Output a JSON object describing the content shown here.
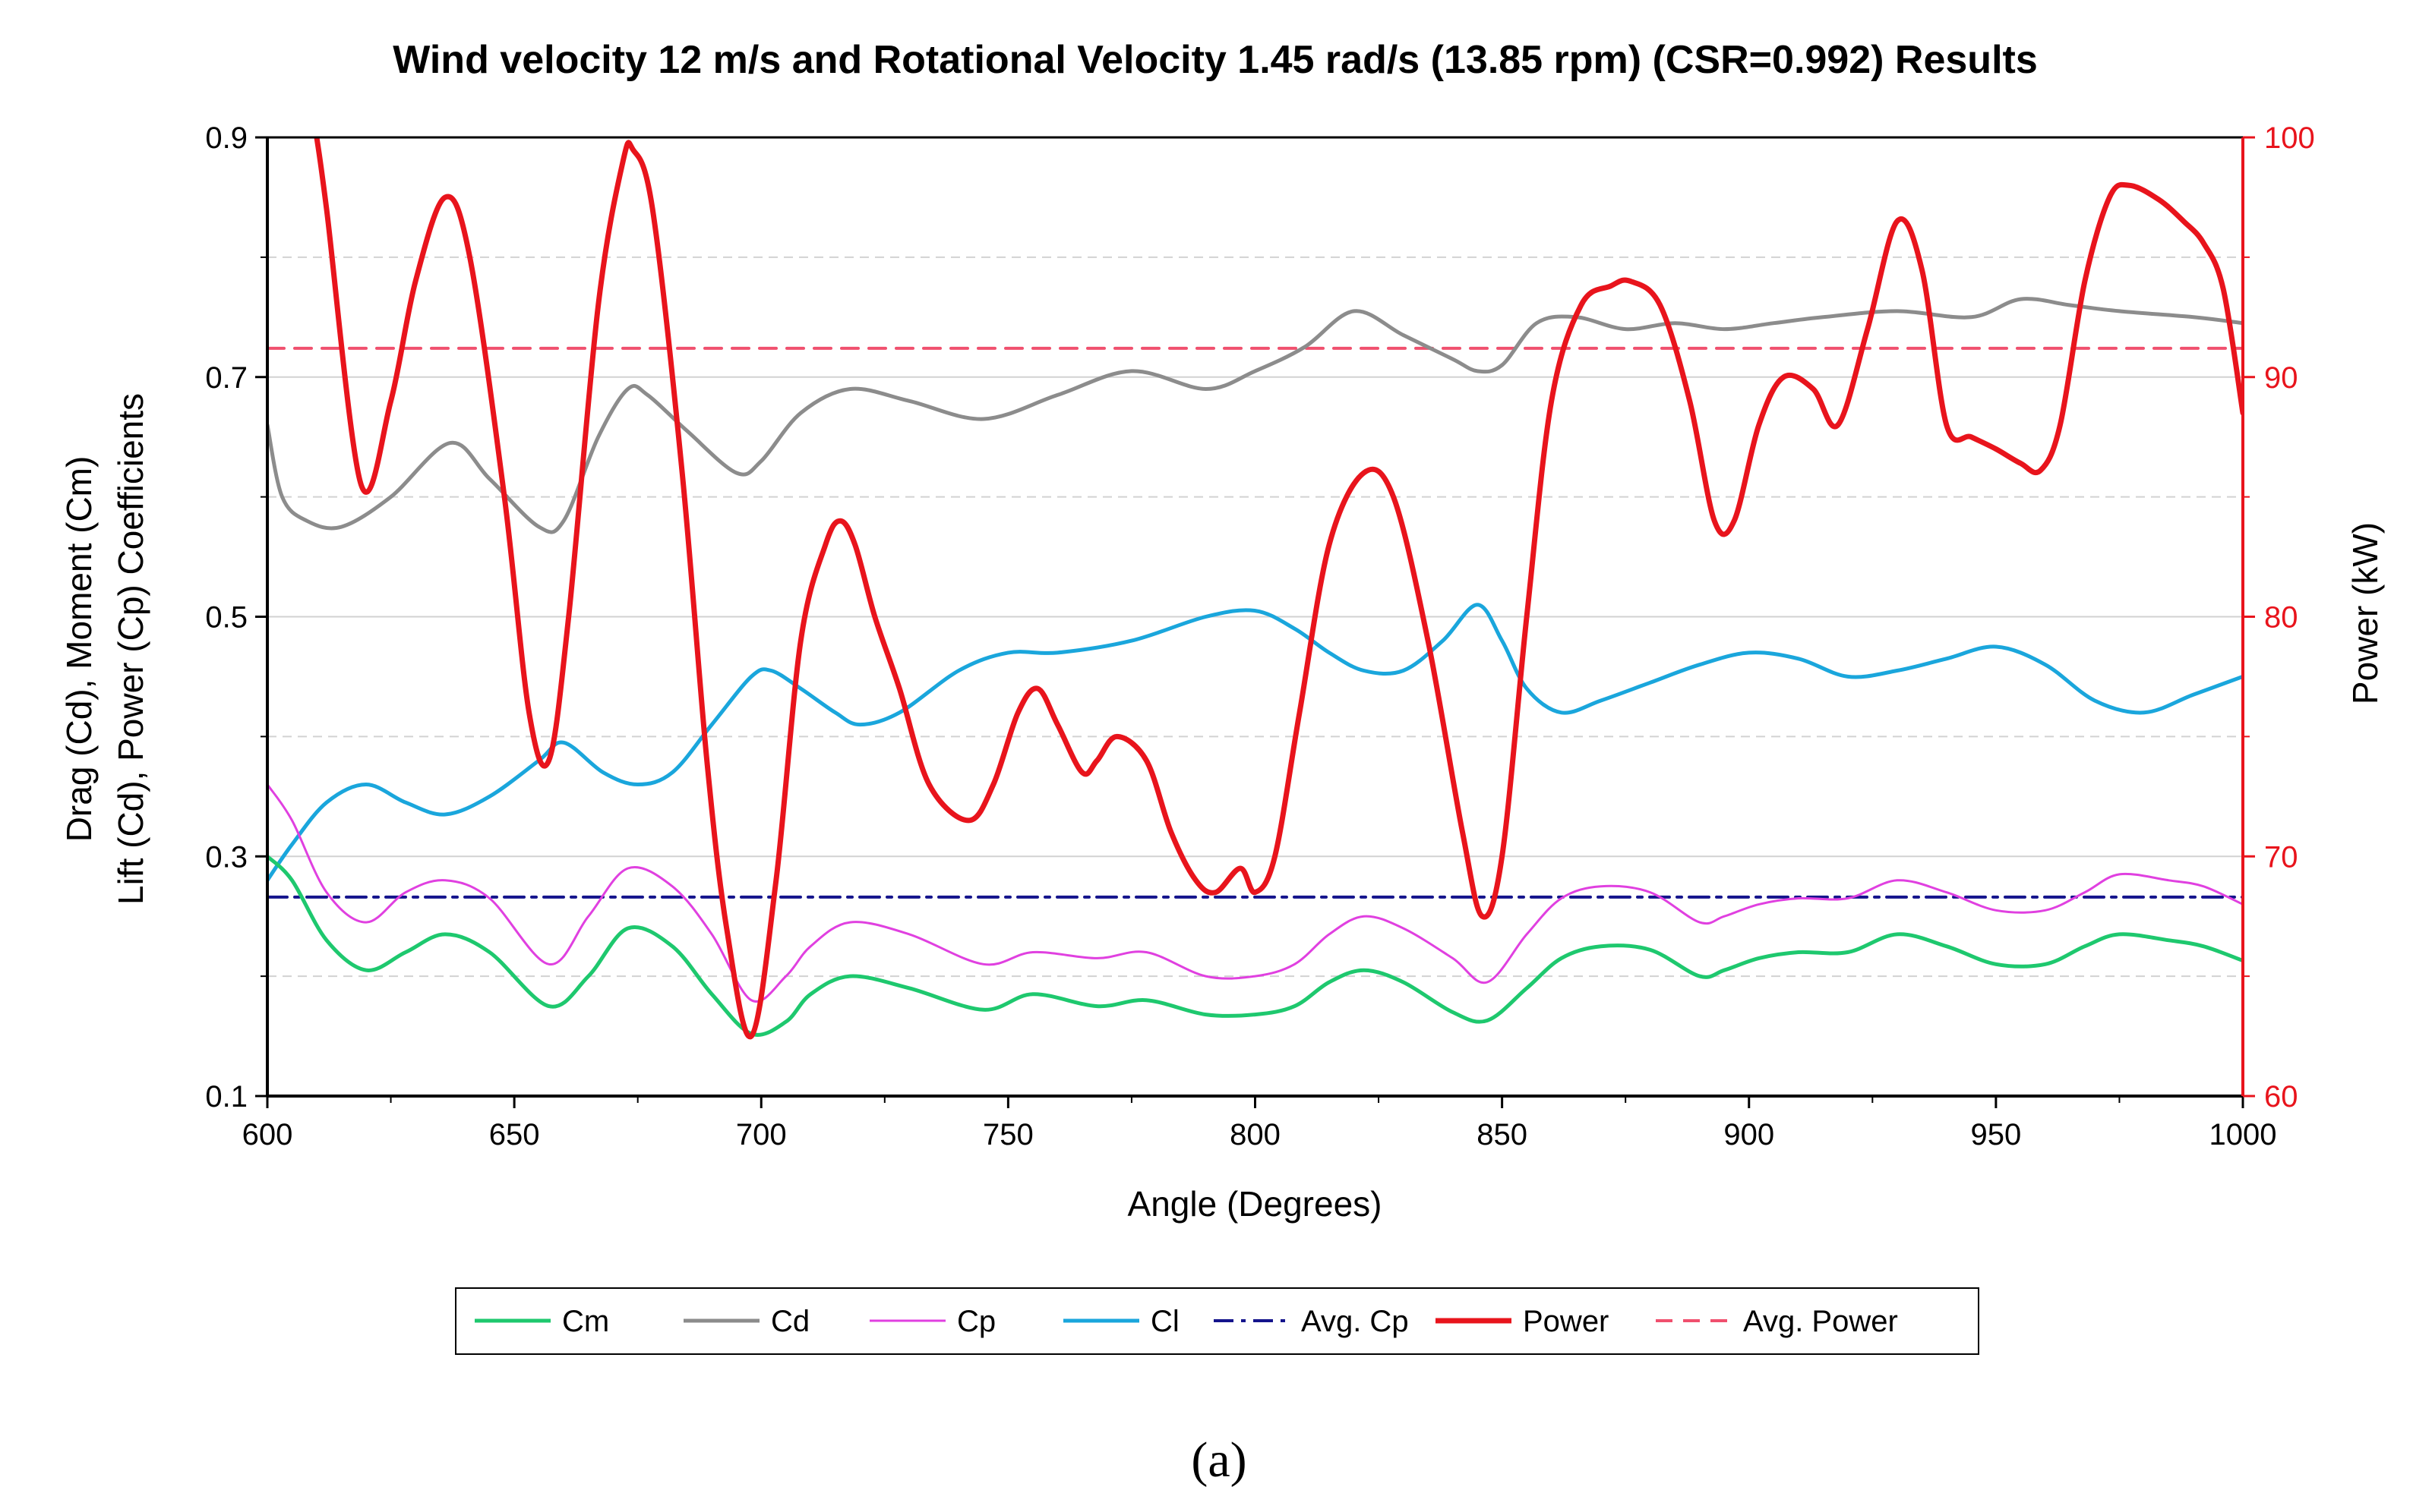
{
  "caption": "(a)",
  "chart_data": {
    "type": "line",
    "title": "Wind velocity 12 m/s and  Rotational Velocity 1.45 rad/s (13.85 rpm) (CSR=0.992) Results",
    "xlabel": "Angle (Degrees)",
    "ylabel_left_line1": "Drag (Cd), Moment (Cm)",
    "ylabel_left_line2": "Lift (Cd), Power (Cp) Coefficients",
    "ylabel_right": "Power (kW)",
    "xlim": [
      600,
      1000
    ],
    "ylim_left": [
      0.1,
      0.9
    ],
    "ylim_right": [
      60,
      100
    ],
    "x_ticks": [
      "600",
      "650",
      "700",
      "750",
      "800",
      "850",
      "900",
      "950",
      "1000"
    ],
    "y_left_ticks": [
      "0.1",
      "0.3",
      "0.5",
      "0.7",
      "0.9"
    ],
    "y_right_ticks": [
      "60",
      "70",
      "80",
      "90",
      "100"
    ],
    "grid": true,
    "legend_position": "bottom",
    "colors": {
      "Cm": "#1ec86e",
      "Cd": "#8c8c8c",
      "Cp": "#e040e0",
      "Cl": "#1aa6dc",
      "Avg. Cp": "#14148c",
      "Power": "#e8141c",
      "Avg. Power": "#f0506e",
      "right_axis": "#e8141c"
    },
    "legend": [
      "Cm",
      "Cd",
      "Cp",
      "Cl",
      "Avg. Cp",
      "Power",
      "Avg. Power"
    ],
    "series": [
      {
        "name": "Cm",
        "axis": "left",
        "style": "solid",
        "x": [
          600,
          605,
          612,
          620,
          628,
          636,
          645,
          657,
          665,
          673,
          682,
          690,
          698,
          705,
          710,
          718,
          730,
          745,
          755,
          768,
          778,
          790,
          800,
          808,
          815,
          822,
          830,
          840,
          847,
          855,
          862,
          870,
          880,
          890,
          895,
          902,
          910,
          920,
          930,
          940,
          950,
          960,
          968,
          975,
          985,
          992,
          1000
        ],
        "y": [
          0.3,
          0.28,
          0.23,
          0.205,
          0.22,
          0.235,
          0.22,
          0.175,
          0.2,
          0.24,
          0.225,
          0.185,
          0.152,
          0.162,
          0.185,
          0.2,
          0.19,
          0.172,
          0.185,
          0.175,
          0.18,
          0.168,
          0.168,
          0.175,
          0.195,
          0.205,
          0.195,
          0.17,
          0.163,
          0.19,
          0.215,
          0.225,
          0.222,
          0.2,
          0.205,
          0.215,
          0.22,
          0.22,
          0.235,
          0.225,
          0.21,
          0.21,
          0.225,
          0.235,
          0.23,
          0.225,
          0.213
        ]
      },
      {
        "name": "Cd",
        "axis": "left",
        "style": "solid",
        "x": [
          600,
          603,
          608,
          615,
          625,
          637,
          645,
          655,
          660,
          667,
          673,
          677,
          685,
          695,
          700,
          708,
          718,
          730,
          745,
          760,
          775,
          790,
          800,
          810,
          820,
          830,
          840,
          845,
          850,
          857,
          865,
          875,
          885,
          895,
          905,
          915,
          930,
          945,
          955,
          965,
          975,
          990,
          1000
        ],
        "y": [
          0.66,
          0.6,
          0.58,
          0.575,
          0.6,
          0.645,
          0.615,
          0.575,
          0.58,
          0.65,
          0.69,
          0.685,
          0.655,
          0.62,
          0.63,
          0.67,
          0.69,
          0.68,
          0.665,
          0.685,
          0.705,
          0.69,
          0.705,
          0.725,
          0.755,
          0.735,
          0.715,
          0.705,
          0.71,
          0.745,
          0.75,
          0.74,
          0.745,
          0.74,
          0.745,
          0.75,
          0.755,
          0.75,
          0.765,
          0.76,
          0.755,
          0.75,
          0.745
        ]
      },
      {
        "name": "Cp",
        "axis": "left",
        "style": "solid",
        "x": [
          600,
          605,
          612,
          620,
          628,
          636,
          645,
          657,
          665,
          673,
          682,
          690,
          698,
          705,
          710,
          718,
          730,
          745,
          755,
          768,
          778,
          790,
          800,
          808,
          815,
          822,
          830,
          840,
          847,
          855,
          862,
          870,
          880,
          890,
          895,
          902,
          910,
          920,
          930,
          940,
          950,
          960,
          968,
          975,
          985,
          992,
          1000
        ],
        "y": [
          0.36,
          0.33,
          0.27,
          0.245,
          0.27,
          0.28,
          0.265,
          0.21,
          0.25,
          0.29,
          0.275,
          0.235,
          0.18,
          0.2,
          0.225,
          0.245,
          0.235,
          0.21,
          0.22,
          0.215,
          0.22,
          0.2,
          0.2,
          0.21,
          0.235,
          0.25,
          0.24,
          0.215,
          0.195,
          0.235,
          0.265,
          0.275,
          0.27,
          0.245,
          0.25,
          0.26,
          0.265,
          0.265,
          0.28,
          0.27,
          0.255,
          0.255,
          0.27,
          0.285,
          0.28,
          0.275,
          0.26
        ]
      },
      {
        "name": "Cl",
        "axis": "left",
        "style": "solid",
        "x": [
          600,
          605,
          612,
          620,
          628,
          636,
          645,
          655,
          660,
          668,
          675,
          682,
          690,
          698,
          702,
          708,
          715,
          720,
          728,
          740,
          750,
          760,
          775,
          790,
          800,
          808,
          815,
          822,
          830,
          838,
          845,
          850,
          855,
          862,
          870,
          880,
          890,
          900,
          910,
          920,
          930,
          940,
          950,
          960,
          970,
          980,
          990,
          1000
        ],
        "y": [
          0.28,
          0.31,
          0.345,
          0.36,
          0.345,
          0.335,
          0.35,
          0.38,
          0.395,
          0.37,
          0.36,
          0.37,
          0.41,
          0.45,
          0.455,
          0.44,
          0.42,
          0.41,
          0.42,
          0.455,
          0.47,
          0.47,
          0.48,
          0.5,
          0.505,
          0.49,
          0.47,
          0.455,
          0.455,
          0.48,
          0.51,
          0.48,
          0.44,
          0.42,
          0.43,
          0.445,
          0.46,
          0.47,
          0.465,
          0.45,
          0.455,
          0.465,
          0.475,
          0.46,
          0.43,
          0.42,
          0.435,
          0.45
        ]
      },
      {
        "name": "Avg. Cp",
        "axis": "left",
        "style": "dashdot",
        "x": [
          600,
          1000
        ],
        "y": [
          0.266,
          0.266
        ]
      },
      {
        "name": "Power",
        "axis": "right",
        "style": "solid",
        "x": [
          610,
          612,
          619,
          625,
          630,
          636,
          641,
          648,
          653,
          657,
          661,
          667,
          672,
          674,
          678,
          684,
          689,
          693,
          698,
          703,
          708,
          713,
          716,
          719,
          723,
          728,
          734,
          742,
          747,
          752,
          756,
          760,
          765,
          768,
          772,
          778,
          783,
          788,
          792,
          797,
          800,
          804,
          809,
          815,
          822,
          828,
          835,
          842,
          846,
          850,
          855,
          860,
          866,
          872,
          876,
          882,
          888,
          893,
          897,
          902,
          907,
          913,
          918,
          924,
          930,
          935,
          940,
          945,
          950,
          955,
          959,
          963,
          968,
          973,
          977,
          983,
          988,
          992,
          996,
          1000
        ],
        "y": [
          100,
          97,
          85.5,
          89,
          94,
          97.5,
          95,
          85,
          76,
          74,
          80,
          93,
          99,
          99.5,
          97,
          86,
          74,
          67,
          62.5,
          69,
          79,
          83,
          84,
          83,
          80,
          77,
          73,
          71.5,
          73,
          76,
          77,
          75.5,
          73.5,
          74,
          75,
          74,
          71,
          69,
          68.5,
          69.5,
          68.5,
          70,
          76,
          83,
          86,
          85,
          79,
          71,
          67.5,
          70,
          80,
          89,
          93,
          93.8,
          94,
          93,
          89,
          84,
          84,
          88,
          90,
          89.5,
          88,
          92,
          96.5,
          94.5,
          88,
          87.5,
          87,
          86.4,
          86.1,
          88,
          94,
          97.5,
          98,
          97.4,
          96.5,
          95.6,
          93.7,
          88.5
        ]
      },
      {
        "name": "Avg. Power",
        "axis": "right",
        "style": "dashed",
        "x": [
          600,
          1000
        ],
        "y": [
          91.2,
          91.2
        ]
      }
    ]
  }
}
